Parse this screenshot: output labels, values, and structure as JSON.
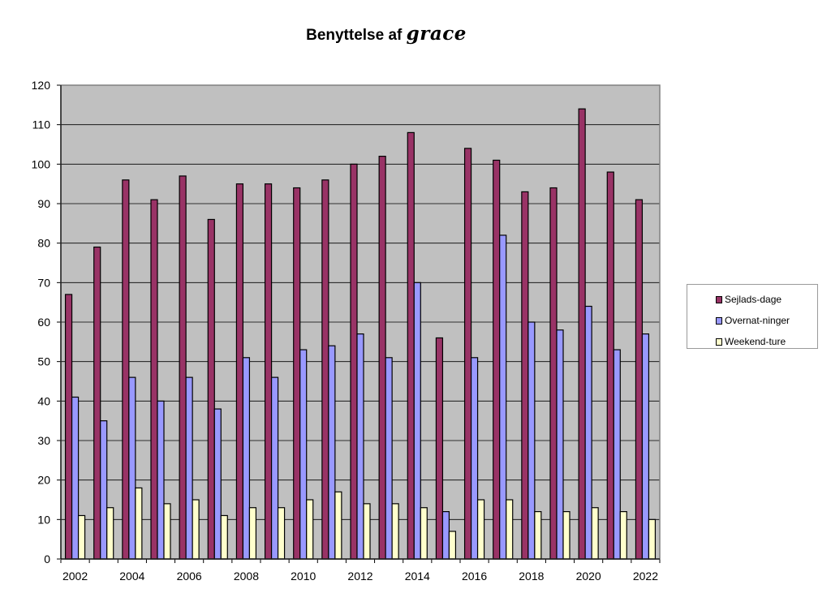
{
  "title_text": "Benyttelse af",
  "title_logo": "grace",
  "chart_data": {
    "type": "bar",
    "title": "Benyttelse af grace",
    "categories": [
      "2002",
      "2003",
      "2004",
      "2005",
      "2006",
      "2007",
      "2008",
      "2009",
      "2010",
      "2011",
      "2012",
      "2013",
      "2014",
      "2015",
      "2016",
      "2017",
      "2018",
      "2019",
      "2020",
      "2021",
      "2022"
    ],
    "x_tick_labels": [
      "2002",
      "2004",
      "2006",
      "2008",
      "2010",
      "2012",
      "2014",
      "2016",
      "2018",
      "2020",
      "2022"
    ],
    "series": [
      {
        "name": "Sejlads-dage",
        "color": "#993366",
        "values": [
          67,
          79,
          96,
          91,
          97,
          86,
          95,
          95,
          94,
          96,
          100,
          102,
          108,
          56,
          104,
          101,
          93,
          94,
          114,
          98,
          91
        ]
      },
      {
        "name": "Overnat-ninger",
        "color": "#9999ff",
        "values": [
          41,
          35,
          46,
          40,
          46,
          38,
          51,
          46,
          53,
          54,
          57,
          51,
          70,
          12,
          51,
          82,
          60,
          58,
          64,
          53,
          57
        ]
      },
      {
        "name": "Weekend-ture",
        "color": "#ffffcc",
        "values": [
          11,
          13,
          18,
          14,
          15,
          11,
          13,
          13,
          15,
          17,
          14,
          14,
          13,
          7,
          15,
          15,
          12,
          12,
          13,
          12,
          10
        ]
      }
    ],
    "ylim": [
      0,
      120
    ],
    "yticks": [
      0,
      10,
      20,
      30,
      40,
      50,
      60,
      70,
      80,
      90,
      100,
      110,
      120
    ],
    "grid": true,
    "plot_background": "#c0c0c0",
    "legend_position": "right"
  }
}
